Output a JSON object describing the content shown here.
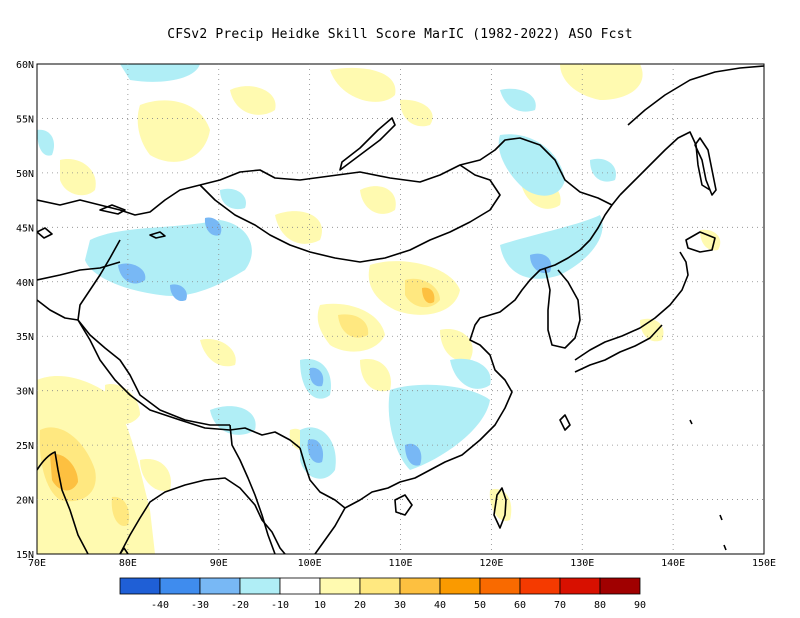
{
  "title": "CFSv2 Precip Heidke Skill Score MarIC (1982-2022) ASO Fcst",
  "map": {
    "lon_range": [
      70,
      150
    ],
    "lat_range": [
      15,
      60
    ],
    "lon_ticks": [
      "70E",
      "80E",
      "90E",
      "100E",
      "110E",
      "120E",
      "130E",
      "140E",
      "150E"
    ],
    "lat_ticks": [
      "15N",
      "20N",
      "25N",
      "30N",
      "35N",
      "40N",
      "45N",
      "50N",
      "55N",
      "60N"
    ],
    "gridlines": "dotted"
  },
  "colorbar": {
    "colors": [
      "#1f5fd6",
      "#3f8cee",
      "#78b8f5",
      "#b0eef6",
      "#ffffff",
      "#fffab0",
      "#ffe880",
      "#fdc040",
      "#fa9a00",
      "#f96a00",
      "#f53a00",
      "#d81000",
      "#a00000"
    ],
    "labels": [
      "-40",
      "-30",
      "-20",
      "-10",
      "10",
      "20",
      "30",
      "40",
      "50",
      "60",
      "70",
      "80",
      "90"
    ]
  }
}
